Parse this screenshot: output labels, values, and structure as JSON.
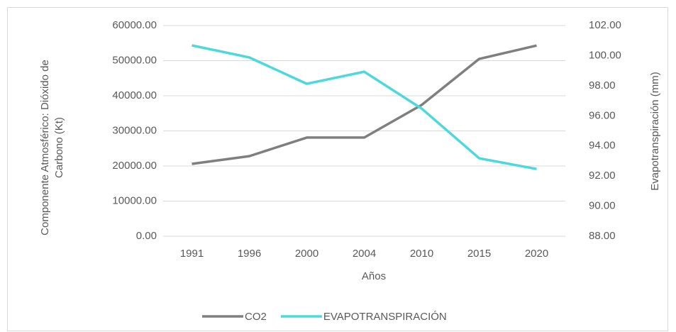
{
  "chart_data": {
    "type": "line",
    "xlabel": "Años",
    "ylabel": [
      "Componente  Atmosférico: Dióxido de",
      "Carbono (Kt)"
    ],
    "y2label": "Evapotranspiración (mm)",
    "categories": [
      "1991",
      "1996",
      "2000",
      "2004",
      "2010",
      "2015",
      "2020"
    ],
    "series": [
      {
        "name": "CO2",
        "color": "#7f7f7f",
        "values": [
          20600,
          22800,
          28100,
          28100,
          37400,
          50500,
          54300
        ]
      },
      {
        "name": "EVAPOTRANSPIRACIÓN",
        "color": "#4dd9d9",
        "axis": "y2",
        "values": [
          100.68,
          99.88,
          98.13,
          98.93,
          96.48,
          93.18,
          92.47
        ]
      }
    ],
    "ylim": [
      0,
      60000
    ],
    "yticks": [
      {
        "value": 0,
        "label": "0.00"
      },
      {
        "value": 10000,
        "label": "10000.00"
      },
      {
        "value": 20000,
        "label": "20000.00"
      },
      {
        "value": 30000,
        "label": "30000.00"
      },
      {
        "value": 40000,
        "label": "40000.00"
      },
      {
        "value": 50000,
        "label": "50000.00"
      },
      {
        "value": 60000,
        "label": "60000.00"
      }
    ],
    "y2lim": [
      88,
      102
    ],
    "y2ticks": [
      {
        "value": 88,
        "label": "88.00"
      },
      {
        "value": 90,
        "label": "90.00"
      },
      {
        "value": 92,
        "label": "92.00"
      },
      {
        "value": 94,
        "label": "94.00"
      },
      {
        "value": 96,
        "label": "96.00"
      },
      {
        "value": 98,
        "label": "98.00"
      },
      {
        "value": 100,
        "label": "100.00"
      },
      {
        "value": 102,
        "label": "102.00"
      }
    ],
    "grid": true,
    "legend": "bottom"
  }
}
